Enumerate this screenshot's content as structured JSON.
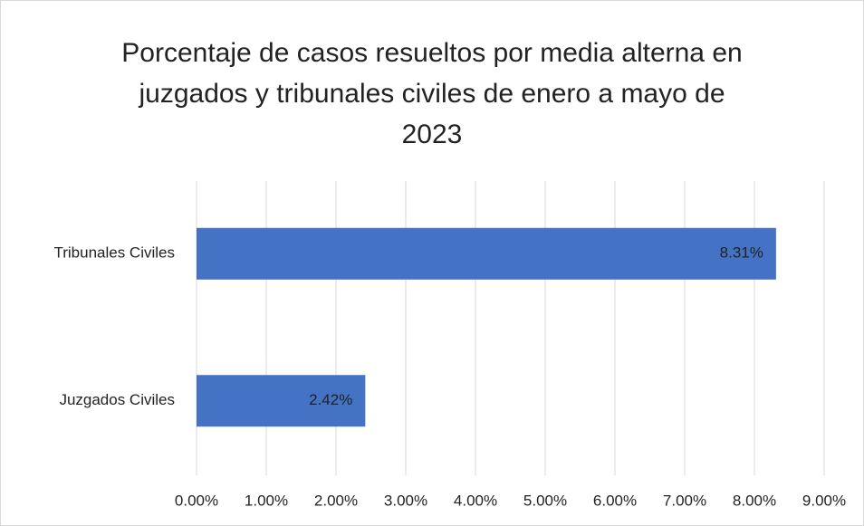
{
  "chart_data": {
    "type": "bar",
    "orientation": "horizontal",
    "title": "Porcentaje de casos resueltos por media alterna en juzgados y tribunales civiles de enero a mayo de 2023",
    "categories": [
      "Tribunales Civiles",
      "Juzgados Civiles"
    ],
    "values": [
      8.31,
      2.42
    ],
    "value_labels": [
      "8.31%",
      "2.42%"
    ],
    "color": "#4472c4",
    "xlim": [
      0,
      9
    ],
    "xticks": [
      {
        "value": 0,
        "label": "0.00%"
      },
      {
        "value": 1,
        "label": "1.00%"
      },
      {
        "value": 2,
        "label": "2.00%"
      },
      {
        "value": 3,
        "label": "3.00%"
      },
      {
        "value": 4,
        "label": "4.00%"
      },
      {
        "value": 5,
        "label": "5.00%"
      },
      {
        "value": 6,
        "label": "6.00%"
      },
      {
        "value": 7,
        "label": "7.00%"
      },
      {
        "value": 8,
        "label": "8.00%"
      },
      {
        "value": 9,
        "label": "9.00%"
      }
    ],
    "grid": true
  }
}
